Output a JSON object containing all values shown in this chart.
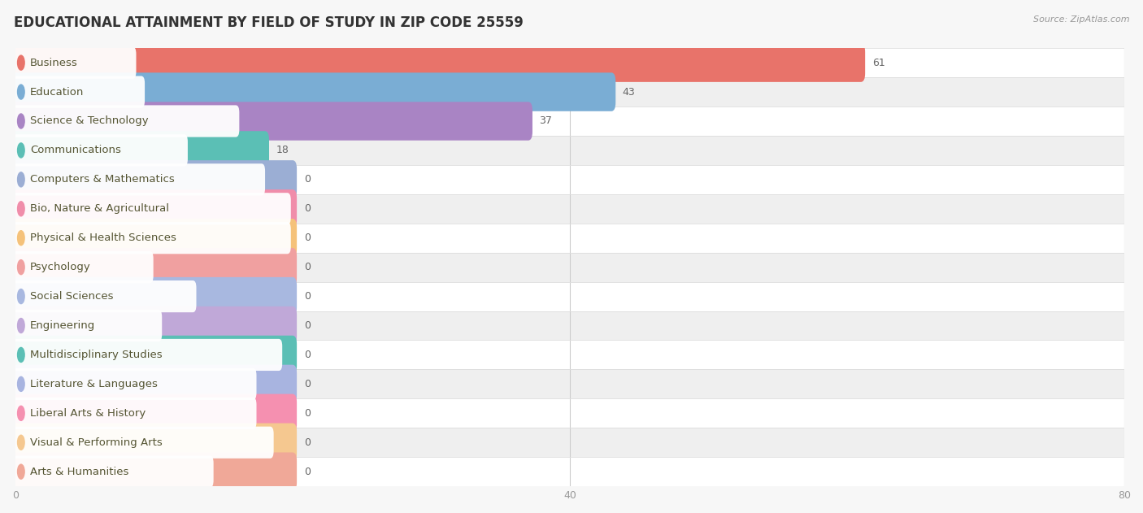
{
  "title": "EDUCATIONAL ATTAINMENT BY FIELD OF STUDY IN ZIP CODE 25559",
  "source": "Source: ZipAtlas.com",
  "categories": [
    "Business",
    "Education",
    "Science & Technology",
    "Communications",
    "Computers & Mathematics",
    "Bio, Nature & Agricultural",
    "Physical & Health Sciences",
    "Psychology",
    "Social Sciences",
    "Engineering",
    "Multidisciplinary Studies",
    "Literature & Languages",
    "Liberal Arts & History",
    "Visual & Performing Arts",
    "Arts & Humanities"
  ],
  "values": [
    61,
    43,
    37,
    18,
    0,
    0,
    0,
    0,
    0,
    0,
    0,
    0,
    0,
    0,
    0
  ],
  "bar_colors": [
    "#E8736A",
    "#7AADD4",
    "#A984C4",
    "#5BBFB5",
    "#9BAED4",
    "#F08DAA",
    "#F5C27A",
    "#F0A0A0",
    "#A8B8E0",
    "#C0A8D8",
    "#5BBFB5",
    "#A8B4E0",
    "#F590B0",
    "#F5C890",
    "#F0A898"
  ],
  "xlim": [
    0,
    80
  ],
  "xticks": [
    0,
    40,
    80
  ],
  "background_color": "#f7f7f7",
  "row_bg_even": "#ffffff",
  "row_bg_odd": "#efefef",
  "title_fontsize": 12,
  "bar_height": 0.72,
  "label_fontsize": 9.5,
  "value_fontsize": 9,
  "zero_bar_width": 20
}
